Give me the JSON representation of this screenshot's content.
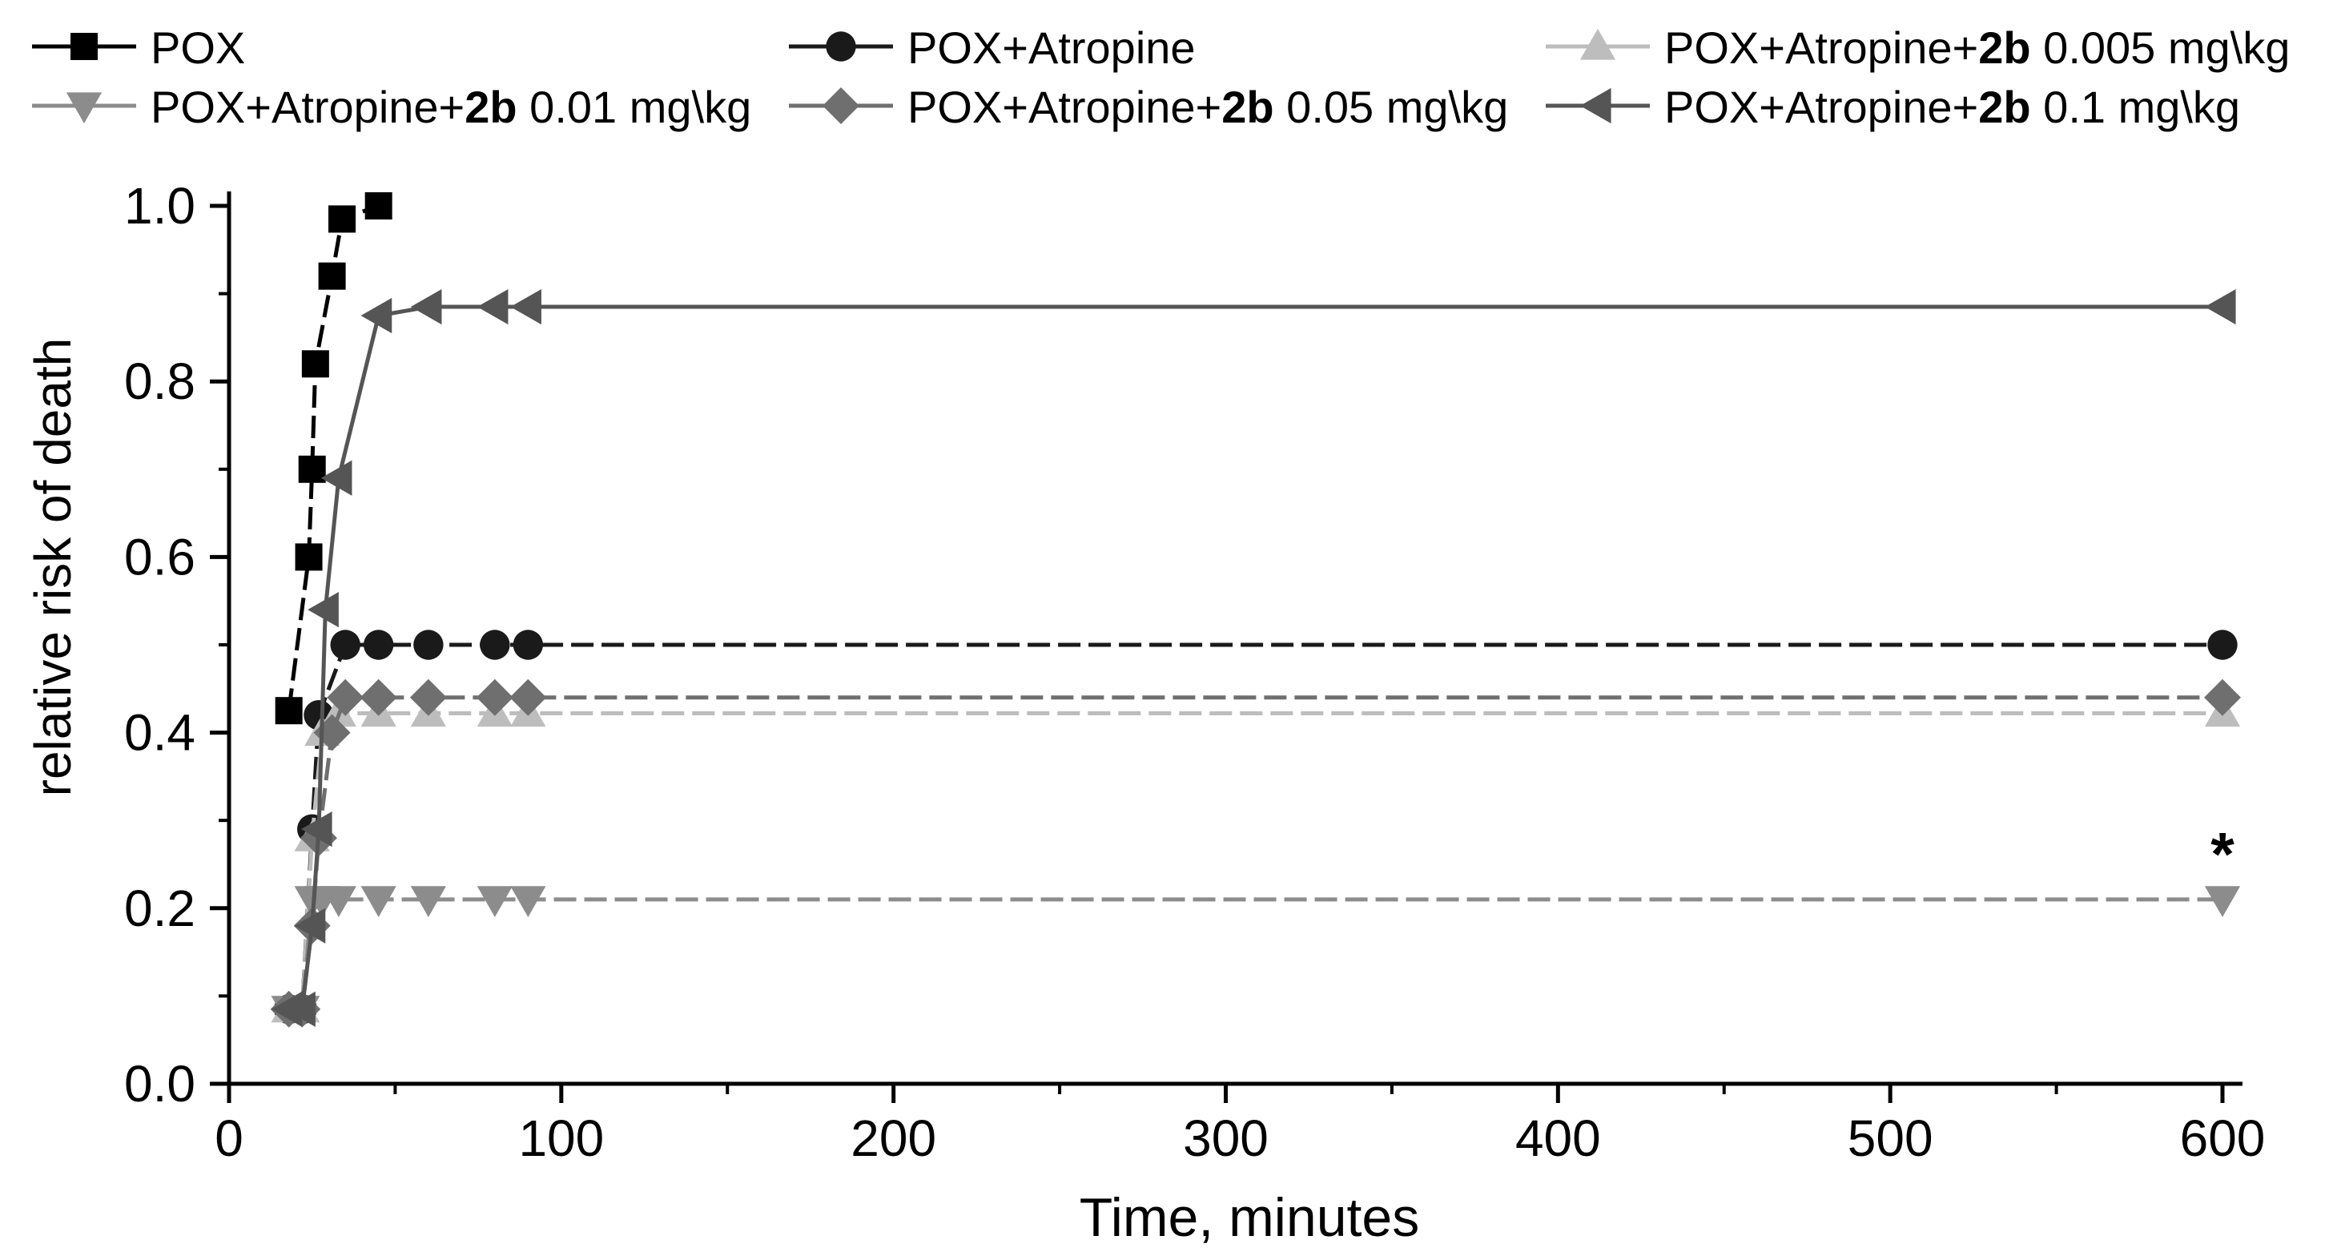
{
  "chart_data": {
    "type": "line",
    "title": "",
    "xlabel": "Time, minutes",
    "ylabel": "relative risk of death",
    "xlim": [
      0,
      610
    ],
    "ylim": [
      0,
      1.0
    ],
    "xticks": [
      0,
      100,
      200,
      300,
      400,
      500,
      600
    ],
    "yticks": [
      0.0,
      0.2,
      0.4,
      0.6,
      0.8,
      1.0
    ],
    "x_tick_labels": [
      "0",
      "100",
      "200",
      "300",
      "400",
      "500",
      "600"
    ],
    "y_tick_labels": [
      "0.0",
      "0.2",
      "0.4",
      "0.6",
      "0.8",
      "1.0"
    ],
    "grid": false,
    "legend_position": "top",
    "series": [
      {
        "name": "POX",
        "legend": {
          "prefix": "POX",
          "bold": "",
          "suffix": ""
        },
        "marker": "square",
        "color": "#000000",
        "dash": true,
        "points": [
          [
            18,
            0.425
          ],
          [
            24,
            0.6
          ],
          [
            25,
            0.7
          ],
          [
            26,
            0.82
          ],
          [
            31,
            0.92
          ],
          [
            34,
            0.985
          ],
          [
            45,
            1.0
          ]
        ]
      },
      {
        "name": "POX+Atropine",
        "legend": {
          "prefix": "POX+Atropine",
          "bold": "",
          "suffix": ""
        },
        "marker": "circle",
        "color": "#1a1a1a",
        "dash": true,
        "points": [
          [
            18,
            0.085
          ],
          [
            22,
            0.085
          ],
          [
            25,
            0.29
          ],
          [
            27,
            0.42
          ],
          [
            35,
            0.5
          ],
          [
            45,
            0.5
          ],
          [
            60,
            0.5
          ],
          [
            80,
            0.5
          ],
          [
            90,
            0.5
          ],
          [
            600,
            0.5
          ]
        ]
      },
      {
        "name": "POX+Atropine+2b 0.005 mg\\kg",
        "legend": {
          "prefix": "POX+Atropine+",
          "bold": "2b",
          "suffix": " 0.005 mg\\kg"
        },
        "marker": "triangle-up",
        "color": "#bdbdbd",
        "dash": true,
        "points": [
          [
            18,
            0.085
          ],
          [
            22,
            0.085
          ],
          [
            25,
            0.28
          ],
          [
            28,
            0.4
          ],
          [
            33,
            0.422
          ],
          [
            45,
            0.422
          ],
          [
            60,
            0.422
          ],
          [
            80,
            0.422
          ],
          [
            90,
            0.422
          ],
          [
            600,
            0.422
          ]
        ]
      },
      {
        "name": "POX+Atropine+2b 0.01 mg\\kg",
        "legend": {
          "prefix": "POX+Atropine+",
          "bold": "2b",
          "suffix": " 0.01 mg\\kg"
        },
        "marker": "triangle-down",
        "color": "#8c8c8c",
        "dash": true,
        "points": [
          [
            18,
            0.085
          ],
          [
            22,
            0.085
          ],
          [
            25,
            0.21
          ],
          [
            28,
            0.21
          ],
          [
            33,
            0.21
          ],
          [
            45,
            0.21
          ],
          [
            60,
            0.21
          ],
          [
            80,
            0.21
          ],
          [
            90,
            0.21
          ],
          [
            600,
            0.21
          ]
        ]
      },
      {
        "name": "POX+Atropine+2b 0.05 mg\\kg",
        "legend": {
          "prefix": "POX+Atropine+",
          "bold": "2b",
          "suffix": " 0.05 mg\\kg"
        },
        "marker": "diamond",
        "color": "#6f6f6f",
        "dash": true,
        "points": [
          [
            18,
            0.085
          ],
          [
            22,
            0.085
          ],
          [
            25,
            0.18
          ],
          [
            27,
            0.28
          ],
          [
            31,
            0.4
          ],
          [
            35,
            0.44
          ],
          [
            45,
            0.44
          ],
          [
            60,
            0.44
          ],
          [
            80,
            0.44
          ],
          [
            90,
            0.44
          ],
          [
            600,
            0.44
          ]
        ]
      },
      {
        "name": "POX+Atropine+2b 0.1 mg\\kg",
        "legend": {
          "prefix": "POX+Atropine+",
          "bold": "2b",
          "suffix": " 0.1 mg\\kg"
        },
        "marker": "triangle-left",
        "color": "#555555",
        "dash": false,
        "points": [
          [
            18,
            0.085
          ],
          [
            22,
            0.085
          ],
          [
            25,
            0.18
          ],
          [
            27,
            0.29
          ],
          [
            29,
            0.54
          ],
          [
            33,
            0.69
          ],
          [
            45,
            0.875
          ],
          [
            60,
            0.885
          ],
          [
            80,
            0.885
          ],
          [
            90,
            0.885
          ],
          [
            600,
            0.885
          ]
        ]
      }
    ],
    "annotations": [
      {
        "text": "*",
        "x": 600,
        "y": 0.265
      }
    ]
  }
}
